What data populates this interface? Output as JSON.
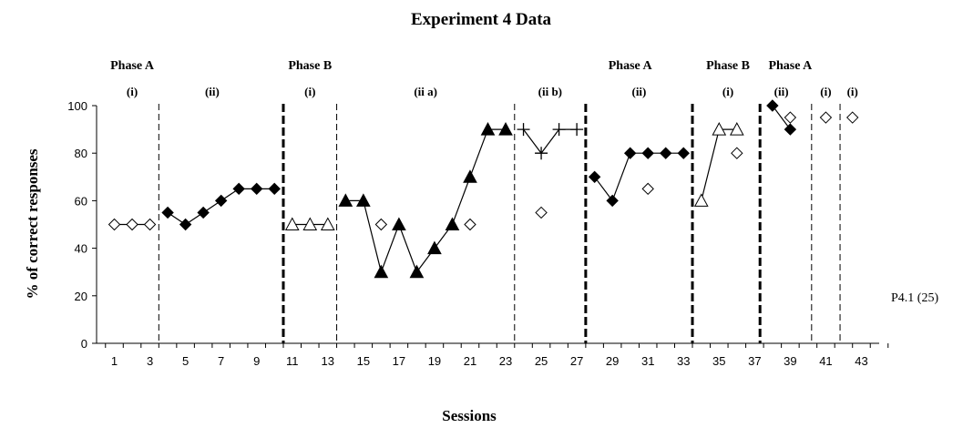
{
  "chart_data": {
    "type": "scatter",
    "title": "Experiment 4 Data",
    "xlabel": "Sessions",
    "ylabel": "% of correct responses",
    "xlim": [
      0,
      44
    ],
    "ylim": [
      0,
      100
    ],
    "yticks": [
      0,
      20,
      40,
      60,
      80,
      100
    ],
    "xticks": [
      1,
      3,
      5,
      7,
      9,
      11,
      13,
      15,
      17,
      19,
      21,
      23,
      25,
      27,
      29,
      31,
      33,
      35,
      37,
      39,
      41,
      43
    ],
    "annotation": "P4.1 (25)",
    "phase_labels": [
      {
        "text": "Phase A",
        "x": 2
      },
      {
        "text": "Phase B",
        "x": 12
      },
      {
        "text": "Phase A",
        "x": 30
      },
      {
        "text": "Phase B",
        "x": 35.5
      },
      {
        "text": "Phase A",
        "x": 39
      }
    ],
    "subphase_labels": [
      {
        "text": "(i)",
        "x": 2
      },
      {
        "text": "(ii)",
        "x": 6.5
      },
      {
        "text": "(i)",
        "x": 12
      },
      {
        "text": "(ii a)",
        "x": 18.5
      },
      {
        "text": "(ii b)",
        "x": 25.5
      },
      {
        "text": "(ii)",
        "x": 30.5
      },
      {
        "text": "(i)",
        "x": 35.5
      },
      {
        "text": "(ii)",
        "x": 38.5
      },
      {
        "text": "(i)",
        "x": 41
      },
      {
        "text": "(i)",
        "x": 42.5
      }
    ],
    "phase_lines": [
      {
        "x": 3.5,
        "style": "thin"
      },
      {
        "x": 10.5,
        "style": "thick"
      },
      {
        "x": 13.5,
        "style": "thin"
      },
      {
        "x": 23.5,
        "style": "thin"
      },
      {
        "x": 27.5,
        "style": "thick"
      },
      {
        "x": 33.5,
        "style": "thick"
      },
      {
        "x": 37.3,
        "style": "thick"
      },
      {
        "x": 40.2,
        "style": "thin"
      },
      {
        "x": 41.8,
        "style": "thin"
      }
    ],
    "series": [
      {
        "marker": "diamond-open",
        "connected": true,
        "segments": [
          [
            [
              1,
              50
            ],
            [
              2,
              50
            ],
            [
              3,
              50
            ]
          ]
        ]
      },
      {
        "marker": "diamond-filled",
        "connected": true,
        "segments": [
          [
            [
              4,
              55
            ],
            [
              5,
              50
            ],
            [
              6,
              55
            ],
            [
              7,
              60
            ],
            [
              8,
              65
            ],
            [
              9,
              65
            ],
            [
              10,
              65
            ]
          ]
        ]
      },
      {
        "marker": "triangle-open",
        "connected": true,
        "segments": [
          [
            [
              11,
              50
            ],
            [
              12,
              50
            ],
            [
              13,
              50
            ]
          ]
        ]
      },
      {
        "marker": "triangle-filled",
        "connected": true,
        "segments": [
          [
            [
              14,
              60
            ],
            [
              15,
              60
            ],
            [
              16,
              30
            ],
            [
              17,
              50
            ],
            [
              18,
              30
            ],
            [
              19,
              40
            ],
            [
              20,
              50
            ],
            [
              21,
              70
            ],
            [
              22,
              90
            ],
            [
              23,
              90
            ]
          ]
        ]
      },
      {
        "marker": "diamond-open",
        "connected": false,
        "segments": [
          [
            [
              16,
              50
            ]
          ],
          [
            [
              21,
              50
            ]
          ],
          [
            [
              25,
              55
            ]
          ],
          [
            [
              31,
              65
            ]
          ],
          [
            [
              36,
              80
            ]
          ]
        ]
      },
      {
        "marker": "plus",
        "connected": true,
        "segments": [
          [
            [
              24,
              90
            ],
            [
              25,
              80
            ],
            [
              26,
              90
            ],
            [
              27,
              90
            ]
          ]
        ]
      },
      {
        "marker": "diamond-filled",
        "connected": true,
        "segments": [
          [
            [
              28,
              70
            ],
            [
              29,
              60
            ],
            [
              30,
              80
            ],
            [
              31,
              80
            ],
            [
              32,
              80
            ],
            [
              33,
              80
            ]
          ]
        ]
      },
      {
        "marker": "triangle-open",
        "connected": true,
        "segments": [
          [
            [
              34,
              60
            ],
            [
              35,
              90
            ],
            [
              36,
              90
            ]
          ]
        ]
      },
      {
        "marker": "diamond-filled",
        "connected": true,
        "segments": [
          [
            [
              38,
              100
            ],
            [
              39,
              90
            ]
          ]
        ]
      },
      {
        "marker": "diamond-open",
        "connected": false,
        "segments": [
          [
            [
              39,
              95
            ]
          ],
          [
            [
              41,
              95
            ]
          ],
          [
            [
              42.5,
              95
            ]
          ]
        ]
      }
    ]
  }
}
